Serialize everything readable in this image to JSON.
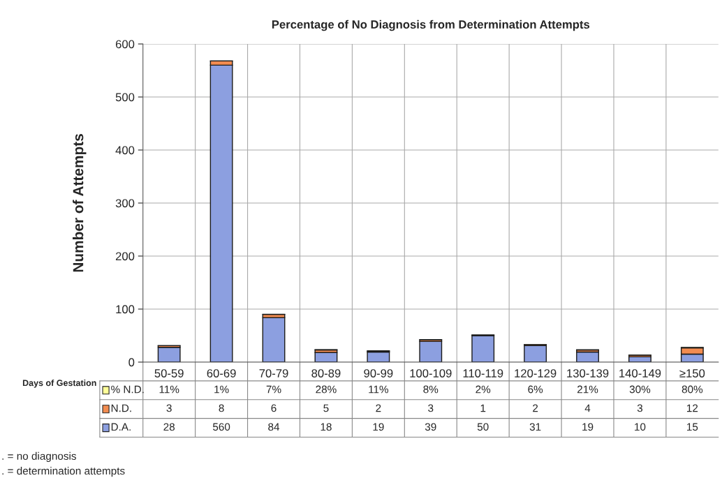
{
  "chart_data": {
    "type": "bar",
    "title": "Percentage of No Diagnosis from Determination Attempts",
    "ylabel": "Number of Attempts",
    "xlabel": "Days of Gestation",
    "categories": [
      "50-59",
      "60-69",
      "70-79",
      "80-89",
      "90-99",
      "100-109",
      "110-119",
      "120-129",
      "130-139",
      "140-149",
      "≥150"
    ],
    "series": [
      {
        "name": "D.A.",
        "color": "#8c9fe0",
        "values": [
          28,
          560,
          84,
          18,
          19,
          39,
          50,
          31,
          19,
          10,
          15
        ]
      },
      {
        "name": "N.D.",
        "color": "#f28c50",
        "values": [
          3,
          8,
          6,
          5,
          2,
          3,
          1,
          2,
          4,
          3,
          12
        ]
      },
      {
        "name": "% N.D.",
        "color": "#ffff99",
        "values": [
          0.11,
          0.01,
          0.07,
          0.28,
          0.11,
          0.08,
          0.02,
          0.06,
          0.21,
          0.3,
          0.8
        ],
        "value_labels": [
          "11%",
          "1%",
          "7%",
          "28%",
          "11%",
          "8%",
          "2%",
          "6%",
          "21%",
          "30%",
          "80%"
        ]
      }
    ],
    "stacked": true,
    "data_labels": true,
    "legend": "bottom left",
    "ylim": [
      0,
      600
    ],
    "yticks": [
      0,
      100,
      200,
      300,
      400,
      500,
      600
    ],
    "grid": true,
    "annotations": [
      ". = no diagnosis",
      ". = determination attempts"
    ]
  }
}
